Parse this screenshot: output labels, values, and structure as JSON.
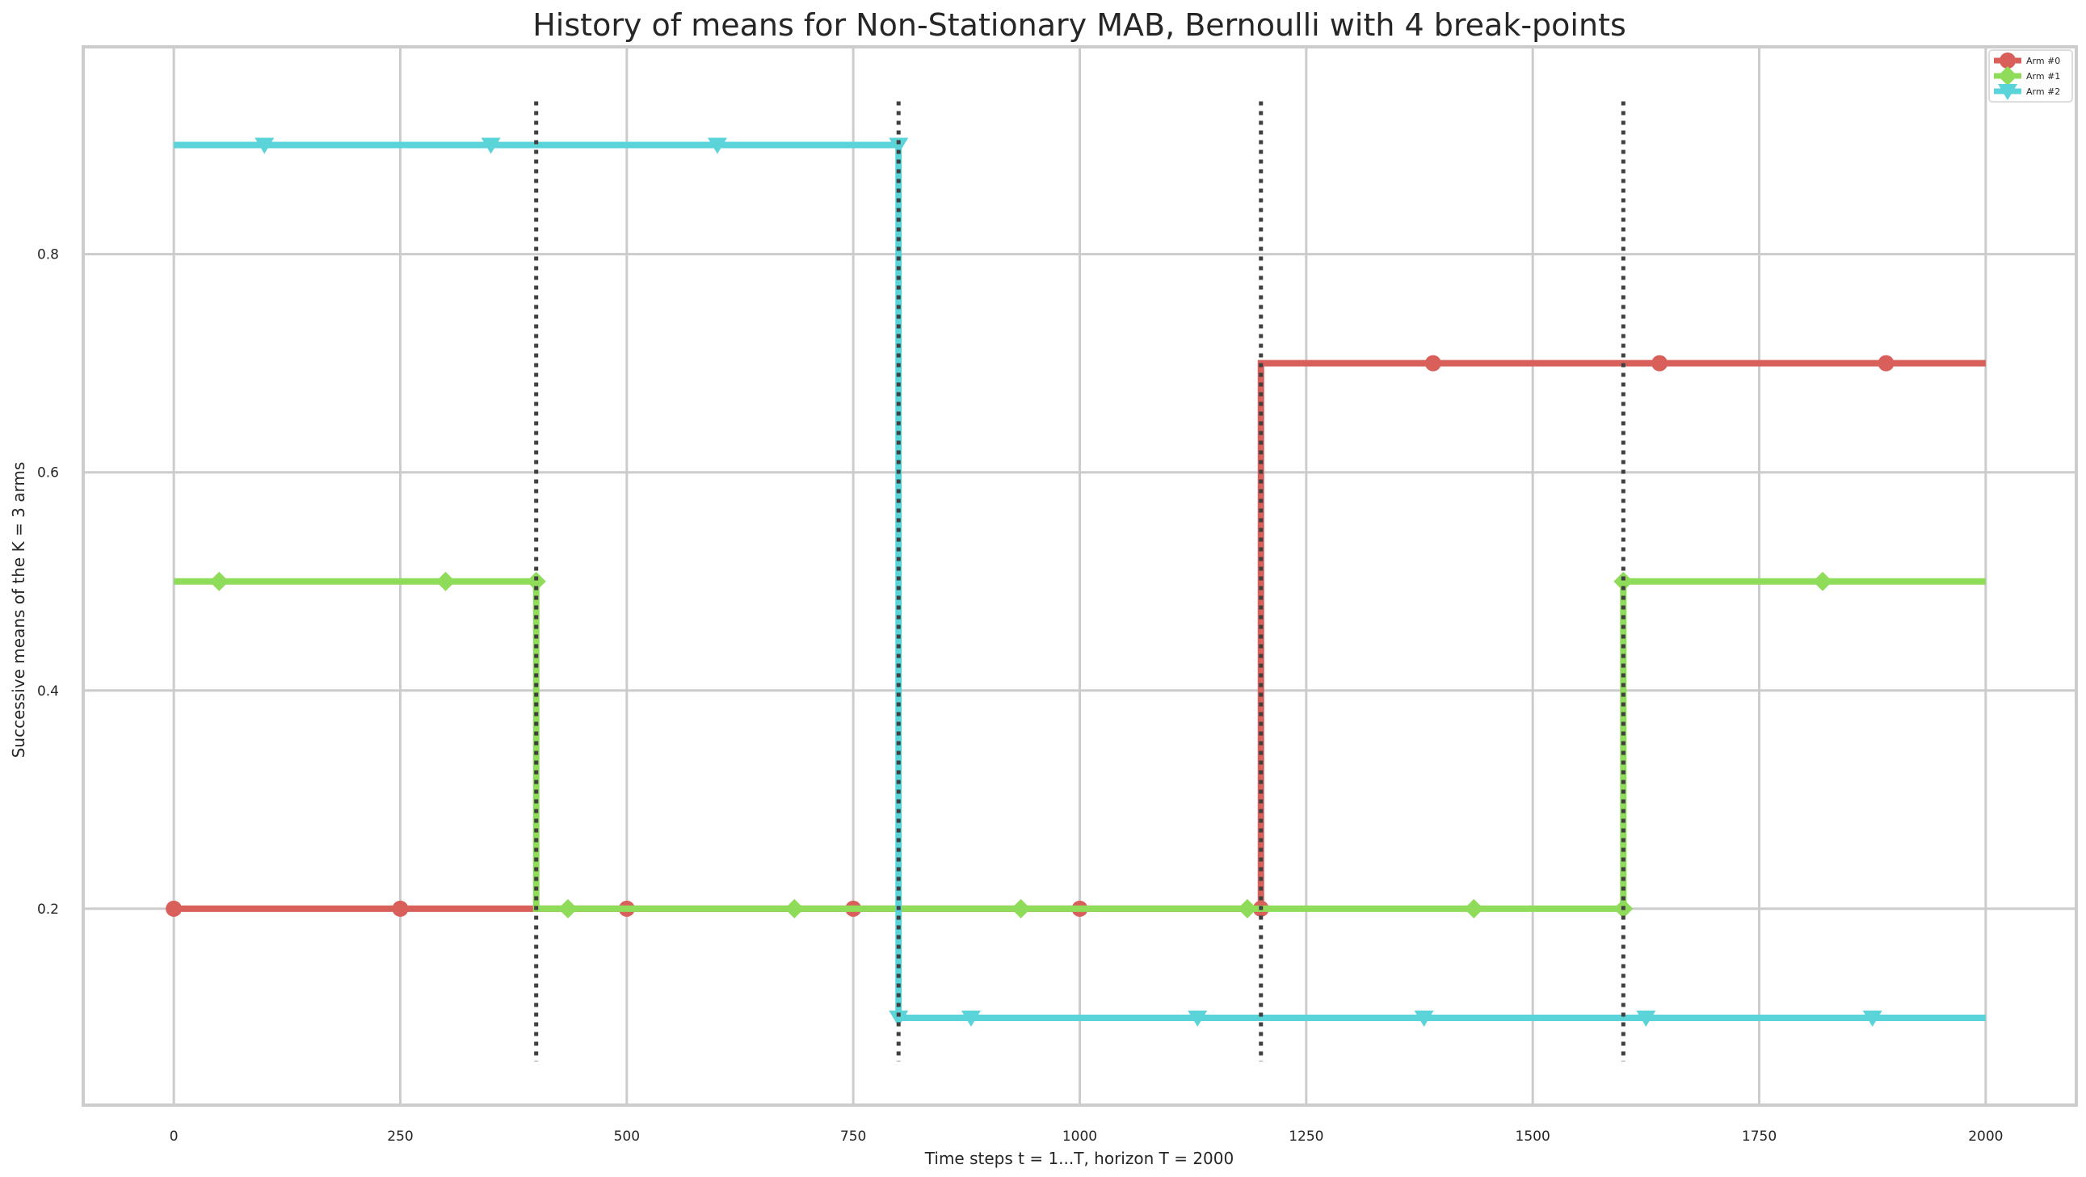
{
  "chart_data": {
    "type": "line",
    "title": "History of means for Non-Stationary MAB, Bernoulli with 4 break-points",
    "xlabel": "Time steps t = 1...T, horizon T = 2000",
    "ylabel": "Successive means of the K = 3 arms",
    "xlim": [
      -100,
      2100
    ],
    "ylim": [
      0.02,
      0.99
    ],
    "xticks": [
      0,
      250,
      500,
      750,
      1000,
      1250,
      1500,
      1750,
      2000
    ],
    "yticks": [
      0.2,
      0.4,
      0.6,
      0.8
    ],
    "grid": true,
    "legend_position": "top-right",
    "break_points": [
      400,
      800,
      1200,
      1600
    ],
    "break_line_range": [
      0.06,
      0.94
    ],
    "series": [
      {
        "name": "Arm #0",
        "color": "#d9605a",
        "marker": "circle",
        "x": [
          0,
          400,
          400,
          800,
          800,
          1200,
          1200,
          1600,
          1600,
          2000
        ],
        "y": [
          0.2,
          0.2,
          0.2,
          0.2,
          0.2,
          0.2,
          0.7,
          0.7,
          0.7,
          0.7
        ],
        "marker_x": [
          0,
          250,
          500,
          750,
          1000,
          1200,
          1390,
          1640,
          1890
        ]
      },
      {
        "name": "Arm #1",
        "color": "#8fdb5a",
        "marker": "diamond",
        "x": [
          0,
          400,
          400,
          800,
          800,
          1200,
          1200,
          1600,
          1600,
          2000
        ],
        "y": [
          0.5,
          0.5,
          0.2,
          0.2,
          0.2,
          0.2,
          0.2,
          0.2,
          0.5,
          0.5
        ],
        "marker_x": [
          50,
          300,
          400,
          435,
          685,
          935,
          1185,
          1435,
          1600,
          1600,
          1820
        ]
      },
      {
        "name": "Arm #2",
        "color": "#5bd4d9",
        "marker": "triangle-down",
        "x": [
          0,
          400,
          400,
          800,
          800,
          1200,
          1200,
          1600,
          1600,
          2000
        ],
        "y": [
          0.9,
          0.9,
          0.9,
          0.9,
          0.1,
          0.1,
          0.1,
          0.1,
          0.1,
          0.1
        ],
        "marker_x": [
          100,
          350,
          600,
          800,
          800,
          880,
          1130,
          1380,
          1625,
          1875
        ]
      }
    ]
  }
}
